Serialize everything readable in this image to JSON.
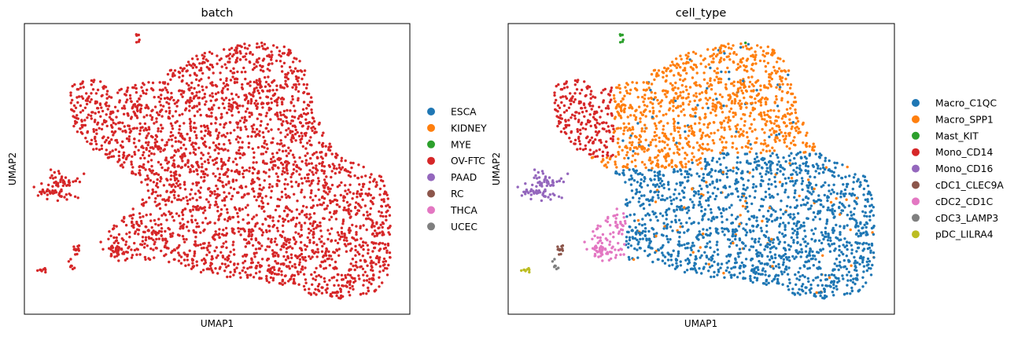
{
  "chart_data": [
    {
      "type": "scatter",
      "title": "batch",
      "xlabel": "UMAP1",
      "ylabel": "UMAP2",
      "grid": false,
      "ticks": false,
      "legend_position": "right",
      "legend": [
        {
          "name": "ESCA",
          "color": "#1f77b4"
        },
        {
          "name": "KIDNEY",
          "color": "#ff7f0e"
        },
        {
          "name": "MYE",
          "color": "#2ca02c"
        },
        {
          "name": "OV-FTC",
          "color": "#d62728"
        },
        {
          "name": "PAAD",
          "color": "#9467bd"
        },
        {
          "name": "RC",
          "color": "#8c564b"
        },
        {
          "name": "THCA",
          "color": "#e377c2"
        },
        {
          "name": "UCEC",
          "color": "#7f7f7f"
        }
      ],
      "point_color": "#d62728",
      "point_count": 3600
    },
    {
      "type": "scatter",
      "title": "cell_type",
      "xlabel": "UMAP1",
      "ylabel": "UMAP2",
      "grid": false,
      "ticks": false,
      "legend_position": "right",
      "legend": [
        {
          "name": "Macro_C1QC",
          "color": "#1f77b4"
        },
        {
          "name": "Macro_SPP1",
          "color": "#ff7f0e"
        },
        {
          "name": "Mast_KIT",
          "color": "#2ca02c"
        },
        {
          "name": "Mono_CD14",
          "color": "#d62728"
        },
        {
          "name": "Mono_CD16",
          "color": "#9467bd"
        },
        {
          "name": "cDC1_CLEC9A",
          "color": "#8c564b"
        },
        {
          "name": "cDC2_CD1C",
          "color": "#e377c2"
        },
        {
          "name": "cDC3_LAMP3",
          "color": "#7f7f7f"
        },
        {
          "name": "pDC_LILRA4",
          "color": "#bcbd22"
        }
      ],
      "point_count": 3600
    }
  ]
}
